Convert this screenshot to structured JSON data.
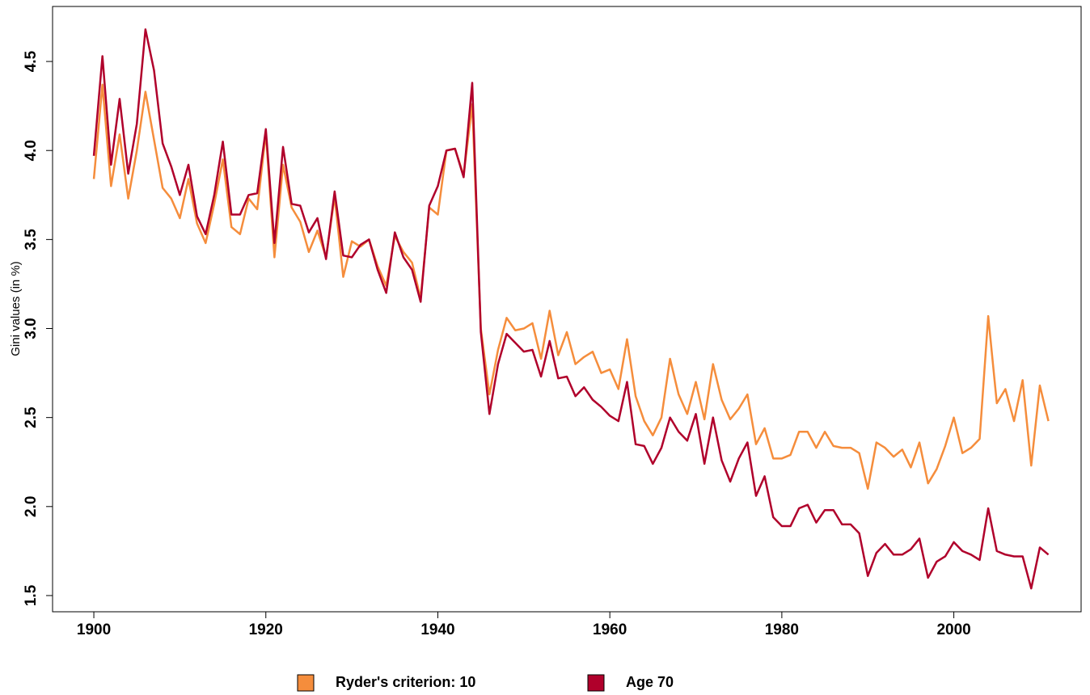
{
  "chart_data": {
    "type": "line",
    "ylabel": "Gini values (in %)",
    "x": [
      1900,
      1901,
      1902,
      1903,
      1904,
      1905,
      1906,
      1907,
      1908,
      1909,
      1910,
      1911,
      1912,
      1913,
      1914,
      1915,
      1916,
      1917,
      1918,
      1919,
      1920,
      1921,
      1922,
      1923,
      1924,
      1925,
      1926,
      1927,
      1928,
      1929,
      1930,
      1931,
      1932,
      1933,
      1934,
      1935,
      1936,
      1937,
      1938,
      1939,
      1940,
      1941,
      1942,
      1943,
      1944,
      1945,
      1946,
      1947,
      1948,
      1949,
      1950,
      1951,
      1952,
      1953,
      1954,
      1955,
      1956,
      1957,
      1958,
      1959,
      1960,
      1961,
      1962,
      1963,
      1964,
      1965,
      1966,
      1967,
      1968,
      1969,
      1970,
      1971,
      1972,
      1973,
      1974,
      1975,
      1976,
      1977,
      1978,
      1979,
      1980,
      1981,
      1982,
      1983,
      1984,
      1985,
      1986,
      1987,
      1988,
      1989,
      1990,
      1991,
      1992,
      1993,
      1994,
      1995,
      1996,
      1997,
      1998,
      1999,
      2000,
      2001,
      2002,
      2003,
      2004,
      2005,
      2006,
      2007,
      2008,
      2009,
      2010,
      2011
    ],
    "series": [
      {
        "name": "Ryder's criterion: 10",
        "color": "#f58d3c",
        "values": [
          3.84,
          4.37,
          3.8,
          4.09,
          3.73,
          4.0,
          4.33,
          4.06,
          3.79,
          3.73,
          3.62,
          3.84,
          3.59,
          3.48,
          3.7,
          3.95,
          3.57,
          3.53,
          3.73,
          3.67,
          4.1,
          3.4,
          3.92,
          3.68,
          3.6,
          3.43,
          3.55,
          3.4,
          3.74,
          3.29,
          3.49,
          3.46,
          3.5,
          3.35,
          3.24,
          3.52,
          3.43,
          3.37,
          3.17,
          3.68,
          3.64,
          4.0,
          4.01,
          3.86,
          4.26,
          3.0,
          2.63,
          2.88,
          3.06,
          2.99,
          3.0,
          3.03,
          2.83,
          3.1,
          2.85,
          2.98,
          2.8,
          2.84,
          2.87,
          2.75,
          2.77,
          2.66,
          2.94,
          2.62,
          2.48,
          2.4,
          2.5,
          2.83,
          2.63,
          2.52,
          2.7,
          2.49,
          2.8,
          2.6,
          2.49,
          2.55,
          2.63,
          2.35,
          2.44,
          2.27,
          2.27,
          2.29,
          2.42,
          2.42,
          2.33,
          2.42,
          2.34,
          2.33,
          2.33,
          2.3,
          2.1,
          2.36,
          2.33,
          2.28,
          2.32,
          2.22,
          2.36,
          2.13,
          2.21,
          2.34,
          2.5,
          2.3,
          2.33,
          2.38,
          3.07,
          2.58,
          2.66,
          2.48,
          2.71,
          2.23,
          2.68,
          2.48
        ]
      },
      {
        "name": "Age 70",
        "color": "#b0002b",
        "values": [
          3.97,
          4.53,
          3.92,
          4.29,
          3.87,
          4.15,
          4.68,
          4.45,
          4.04,
          3.91,
          3.75,
          3.92,
          3.63,
          3.53,
          3.75,
          4.05,
          3.64,
          3.64,
          3.75,
          3.76,
          4.12,
          3.48,
          4.02,
          3.7,
          3.69,
          3.54,
          3.62,
          3.39,
          3.77,
          3.41,
          3.4,
          3.47,
          3.5,
          3.33,
          3.2,
          3.54,
          3.4,
          3.33,
          3.15,
          3.69,
          3.8,
          4.0,
          4.01,
          3.85,
          4.38,
          2.98,
          2.52,
          2.8,
          2.97,
          2.92,
          2.87,
          2.88,
          2.73,
          2.93,
          2.72,
          2.73,
          2.62,
          2.67,
          2.6,
          2.56,
          2.51,
          2.48,
          2.7,
          2.35,
          2.34,
          2.24,
          2.33,
          2.5,
          2.42,
          2.37,
          2.52,
          2.24,
          2.5,
          2.26,
          2.14,
          2.27,
          2.36,
          2.06,
          2.17,
          1.94,
          1.89,
          1.89,
          1.99,
          2.01,
          1.91,
          1.98,
          1.98,
          1.9,
          1.9,
          1.85,
          1.61,
          1.74,
          1.79,
          1.73,
          1.73,
          1.76,
          1.82,
          1.6,
          1.69,
          1.72,
          1.8,
          1.75,
          1.73,
          1.7,
          1.99,
          1.75,
          1.73,
          1.72,
          1.72,
          1.54,
          1.77,
          1.73
        ]
      }
    ],
    "xlim": [
      1895.2,
      2014.8
    ],
    "ylim": [
      1.409,
      4.809
    ],
    "xticks": [
      1900,
      1920,
      1940,
      1960,
      1980,
      2000
    ],
    "yticks": [
      1.5,
      {
        "value": 2,
        "label": "2.0"
      },
      2.5,
      {
        "value": 3,
        "label": "3.0"
      },
      3.5,
      {
        "value": 4,
        "label": "4.0"
      },
      4.5
    ],
    "grid": false,
    "legend": "bottom"
  }
}
